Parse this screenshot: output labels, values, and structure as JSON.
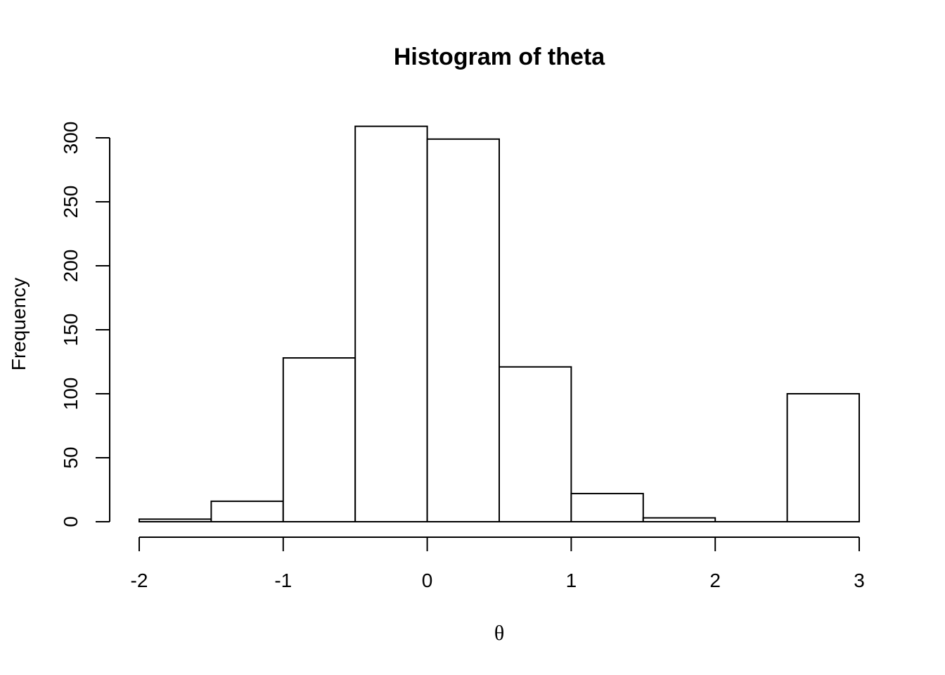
{
  "chart_data": {
    "type": "bar",
    "title": "Histogram of theta",
    "xlabel": "θ",
    "ylabel": "Frequency",
    "bins": [
      {
        "x0": -2.0,
        "x1": -1.5,
        "count": 2
      },
      {
        "x0": -1.5,
        "x1": -1.0,
        "count": 16
      },
      {
        "x0": -1.0,
        "x1": -0.5,
        "count": 128
      },
      {
        "x0": -0.5,
        "x1": 0.0,
        "count": 309
      },
      {
        "x0": 0.0,
        "x1": 0.5,
        "count": 299
      },
      {
        "x0": 0.5,
        "x1": 1.0,
        "count": 121
      },
      {
        "x0": 1.0,
        "x1": 1.5,
        "count": 22
      },
      {
        "x0": 1.5,
        "x1": 2.0,
        "count": 3
      },
      {
        "x0": 2.0,
        "x1": 2.5,
        "count": 0
      },
      {
        "x0": 2.5,
        "x1": 3.0,
        "count": 100
      }
    ],
    "xticks": [
      -2,
      -1,
      0,
      1,
      2,
      3
    ],
    "yticks": [
      0,
      50,
      100,
      150,
      200,
      250,
      300
    ],
    "xlim": [
      -2,
      3
    ],
    "ylim": [
      0,
      300
    ],
    "grid": false,
    "colors": {
      "fill": "#ffffff",
      "stroke": "#000000"
    }
  }
}
